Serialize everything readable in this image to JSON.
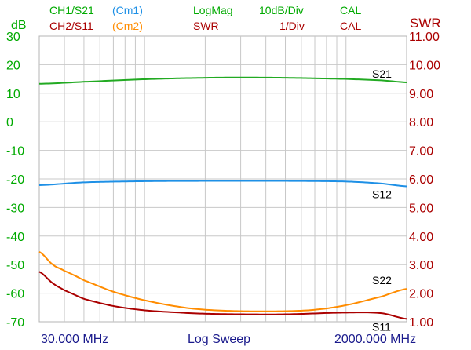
{
  "header": {
    "row1": [
      {
        "text": "CH1/S21",
        "color": "#00aa00"
      },
      {
        "text": "(Cm1)",
        "color": "#1e90e6"
      },
      {
        "text": "LogMag",
        "color": "#00aa00"
      },
      {
        "text": "10dB/Div",
        "color": "#00aa00"
      },
      {
        "text": "CAL",
        "color": "#00aa00"
      }
    ],
    "row2": [
      {
        "text": "CH2/S11",
        "color": "#aa0000"
      },
      {
        "text": "(Cm2)",
        "color": "#ff8c00"
      },
      {
        "text": "SWR",
        "color": "#aa0000"
      },
      {
        "text": "1/Div",
        "color": "#aa0000"
      },
      {
        "text": "CAL",
        "color": "#aa0000"
      }
    ]
  },
  "footer": {
    "start": "30.000 MHz",
    "mode": "Log Sweep",
    "stop": "2000.000 MHz"
  },
  "chart_data": {
    "type": "line",
    "xscale": "log",
    "xlim": [
      30,
      2000
    ],
    "xunit": "MHz",
    "left_axis": {
      "unit": "dB",
      "ylim": [
        -70,
        30
      ],
      "ticks": [
        "30",
        "20",
        "10",
        "0",
        "-10",
        "-20",
        "-30",
        "-40",
        "-50",
        "-60",
        "-70"
      ],
      "color": "#00aa00"
    },
    "right_axis": {
      "unit": "SWR",
      "ylim": [
        1.0,
        11.0
      ],
      "ticks": [
        "11.00",
        "10.00",
        "9.00",
        "8.00",
        "7.00",
        "6.00",
        "5.00",
        "4.00",
        "3.00",
        "2.00",
        "1.00"
      ],
      "color": "#aa0000"
    },
    "grid": true,
    "series": [
      {
        "name": "S21",
        "axis": "left",
        "color": "#22aa22",
        "x": [
          30,
          50,
          100,
          200,
          300,
          500,
          1000,
          1500,
          2000
        ],
        "y": [
          13.3,
          14.0,
          14.9,
          15.4,
          15.5,
          15.4,
          15.0,
          14.5,
          13.8
        ]
      },
      {
        "name": "S12",
        "axis": "left",
        "color": "#1e90e6",
        "x": [
          30,
          50,
          100,
          200,
          500,
          1000,
          1500,
          2000
        ],
        "y": [
          -22.2,
          -21.2,
          -20.8,
          -20.7,
          -20.7,
          -20.9,
          -21.6,
          -22.6
        ]
      },
      {
        "name": "S22",
        "axis": "right",
        "color": "#ff8c00",
        "x": [
          30,
          35,
          40,
          50,
          70,
          100,
          150,
          200,
          300,
          500,
          700,
          1000,
          1500,
          2000
        ],
        "y": [
          3.45,
          3.0,
          2.78,
          2.45,
          2.05,
          1.75,
          1.52,
          1.42,
          1.37,
          1.37,
          1.42,
          1.58,
          1.88,
          2.15
        ]
      },
      {
        "name": "S11",
        "axis": "right",
        "color": "#aa0000",
        "x": [
          30,
          35,
          40,
          50,
          70,
          100,
          150,
          200,
          300,
          500,
          1000,
          1500,
          2000
        ],
        "y": [
          2.75,
          2.35,
          2.1,
          1.8,
          1.55,
          1.4,
          1.32,
          1.28,
          1.26,
          1.26,
          1.32,
          1.3,
          1.1
        ]
      }
    ]
  }
}
